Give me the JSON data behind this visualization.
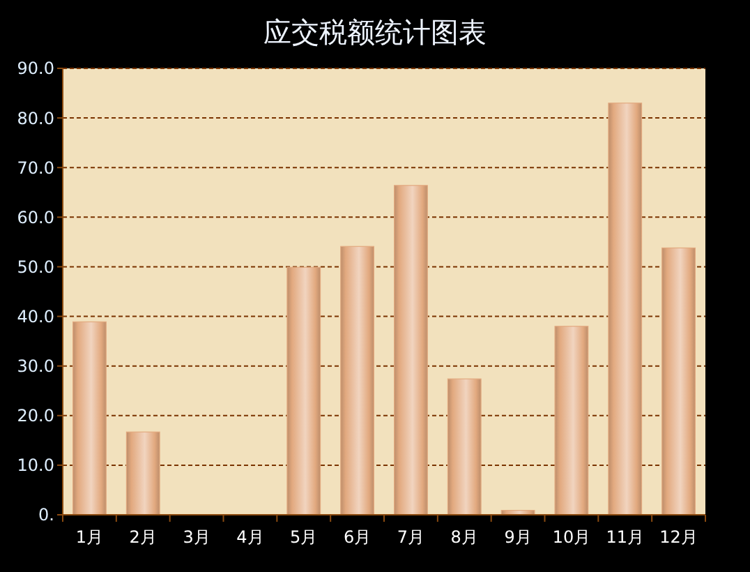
{
  "chart_data": {
    "type": "bar",
    "title": "应交税额统计图表",
    "categories": [
      "1月",
      "2月",
      "3月",
      "4月",
      "5月",
      "6月",
      "7月",
      "8月",
      "9月",
      "10月",
      "11月",
      "12月"
    ],
    "values": [
      38.9,
      16.7,
      0,
      0,
      49.9,
      54.1,
      66.4,
      27.4,
      0.9,
      38.0,
      83.0,
      53.8
    ],
    "color": "#e2a97f",
    "ylim": [
      0,
      90
    ],
    "yticks": [
      {
        "value": 0,
        "label": "0."
      },
      {
        "value": 10,
        "label": "10.0"
      },
      {
        "value": 20,
        "label": "20.0"
      },
      {
        "value": 30,
        "label": "30.0"
      },
      {
        "value": 40,
        "label": "40.0"
      },
      {
        "value": 50,
        "label": "50.0"
      },
      {
        "value": 60,
        "label": "60.0"
      },
      {
        "value": 70,
        "label": "70.0"
      },
      {
        "value": 80,
        "label": "80.0"
      },
      {
        "value": 90,
        "label": "90.0"
      }
    ],
    "grid": "y"
  }
}
